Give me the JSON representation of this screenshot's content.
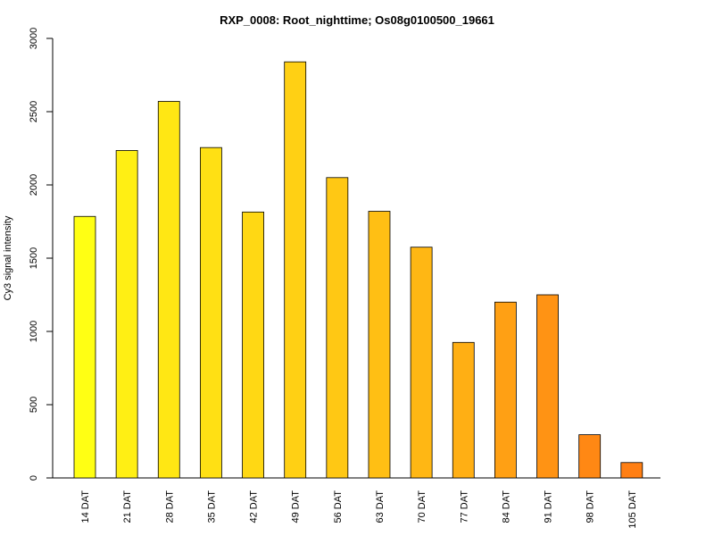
{
  "chart_data": {
    "type": "bar",
    "title": "RXP_0008: Root_nighttime; Os08g0100500_19661",
    "xlabel": "",
    "ylabel": "Cy3 signal intensity",
    "ylim": [
      0,
      3000
    ],
    "yticks": [
      0,
      500,
      1000,
      1500,
      2000,
      2500,
      3000
    ],
    "categories": [
      "14 DAT",
      "21 DAT",
      "28 DAT",
      "35 DAT",
      "42 DAT",
      "49 DAT",
      "56 DAT",
      "63 DAT",
      "70 DAT",
      "77 DAT",
      "84 DAT",
      "91 DAT",
      "98 DAT",
      "105 DAT"
    ],
    "values": [
      1785,
      2235,
      2570,
      2255,
      1815,
      2840,
      2050,
      1820,
      1575,
      925,
      1200,
      1250,
      295,
      105
    ],
    "colors": [
      "#ffff14",
      "#ffef14",
      "#ffe714",
      "#ffe014",
      "#ffd814",
      "#ffd014",
      "#ffc814",
      "#ffbf14",
      "#ffb714",
      "#ffaf14",
      "#ffa014",
      "#ff9314",
      "#ff8814",
      "#ff7f14"
    ],
    "grid": false,
    "legend": "none"
  }
}
